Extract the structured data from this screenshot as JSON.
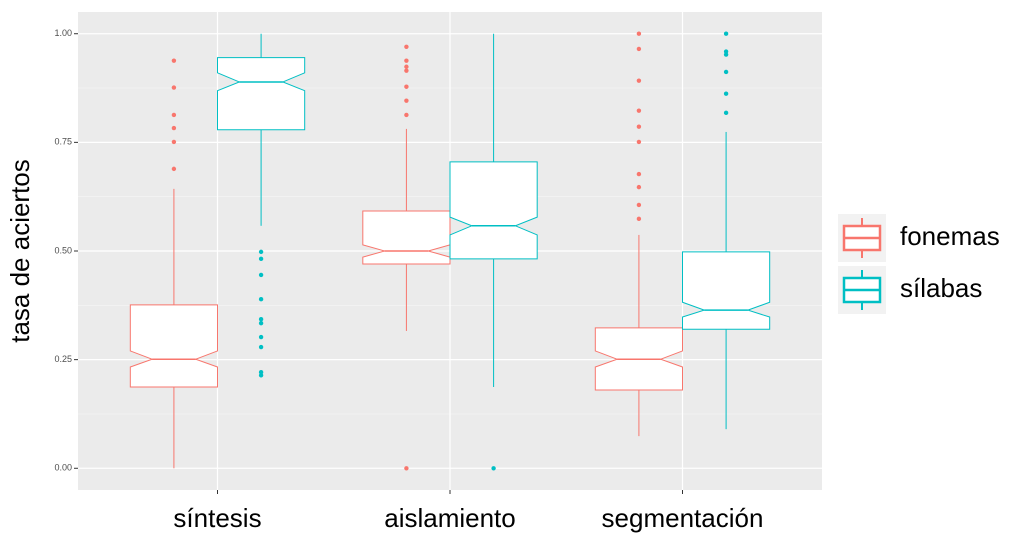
{
  "chart_data": {
    "type": "boxplot",
    "y_label": "tasa de aciertos",
    "categories": [
      "síntesis",
      "aislamiento",
      "segmentación"
    ],
    "ylim": [
      -0.05,
      1.05
    ],
    "yticks": [
      {
        "value": 0,
        "label": "0.00"
      },
      {
        "value": 0.25,
        "label": "0.25"
      },
      {
        "value": 0.5,
        "label": "0.50"
      },
      {
        "value": 0.75,
        "label": "0.75"
      },
      {
        "value": 1,
        "label": "1.00"
      }
    ],
    "y_minor_grid": [
      0.125,
      0.375,
      0.625,
      0.875
    ],
    "grid": true,
    "notch": true,
    "legend_position": "right",
    "series": [
      {
        "name": "fonemas",
        "color": "#F8766D",
        "whisker_low": [
          0.0,
          0.316,
          0.074
        ],
        "q1": [
          0.187,
          0.47,
          0.18
        ],
        "notch_low": [
          0.233,
          0.486,
          0.233
        ],
        "median": [
          0.251,
          0.5,
          0.251
        ],
        "notch_high": [
          0.27,
          0.514,
          0.27
        ],
        "q3": [
          0.376,
          0.592,
          0.323
        ],
        "whisker_high": [
          0.643,
          0.781,
          0.537
        ],
        "outliers": [
          [
            0.689,
            0.751,
            0.783,
            0.813,
            0.876,
            0.938
          ],
          [
            0.0,
            0.813,
            0.846,
            0.878,
            0.915,
            0.924,
            0.938,
            0.97
          ],
          [
            0.574,
            0.606,
            0.647,
            0.677,
            0.751,
            0.786,
            0.823,
            0.892,
            0.965,
            1.0
          ]
        ]
      },
      {
        "name": "sílabas",
        "color": "#00BFC4",
        "whisker_low": [
          0.558,
          0.187,
          0.09
        ],
        "q1": [
          0.779,
          0.482,
          0.32
        ],
        "notch_low": [
          0.869,
          0.537,
          0.348
        ],
        "median": [
          0.889,
          0.558,
          0.364
        ],
        "notch_high": [
          0.91,
          0.578,
          0.382
        ],
        "q3": [
          0.945,
          0.705,
          0.498
        ],
        "whisker_high": [
          1.0,
          1.0,
          0.774
        ],
        "outliers": [
          [
            0.214,
            0.221,
            0.279,
            0.302,
            0.334,
            0.343,
            0.389,
            0.445,
            0.482,
            0.498
          ],
          [
            0.0
          ],
          [
            0.818,
            0.862,
            0.912,
            0.952,
            0.959,
            1.0
          ]
        ]
      }
    ]
  }
}
